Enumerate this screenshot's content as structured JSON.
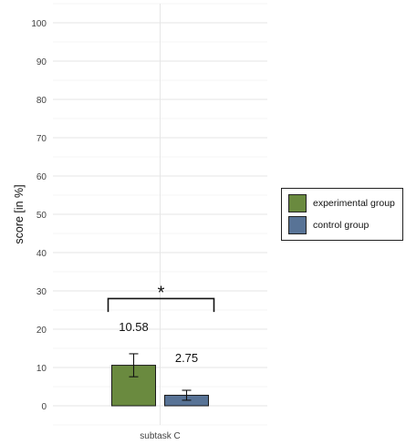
{
  "chart_data": {
    "type": "bar",
    "categories": [
      "subtask C"
    ],
    "series": [
      {
        "name": "experimental group",
        "values": [
          10.58
        ],
        "error": [
          3.0
        ],
        "color": "#6a8a3f",
        "value_label": "10.58"
      },
      {
        "name": "control group",
        "values": [
          2.75
        ],
        "error": [
          1.3
        ],
        "color": "#587396",
        "value_label": "2.75"
      }
    ],
    "xlabel": "",
    "ylabel": "score [in %]",
    "ylim": [
      -4,
      105
    ],
    "yticks": [
      0,
      10,
      20,
      30,
      40,
      50,
      60,
      70,
      80,
      90,
      100
    ],
    "grid": true,
    "legend": "right",
    "annotation": {
      "text": "*",
      "bracket_y": 28,
      "bracket_drop": 3.5
    }
  }
}
